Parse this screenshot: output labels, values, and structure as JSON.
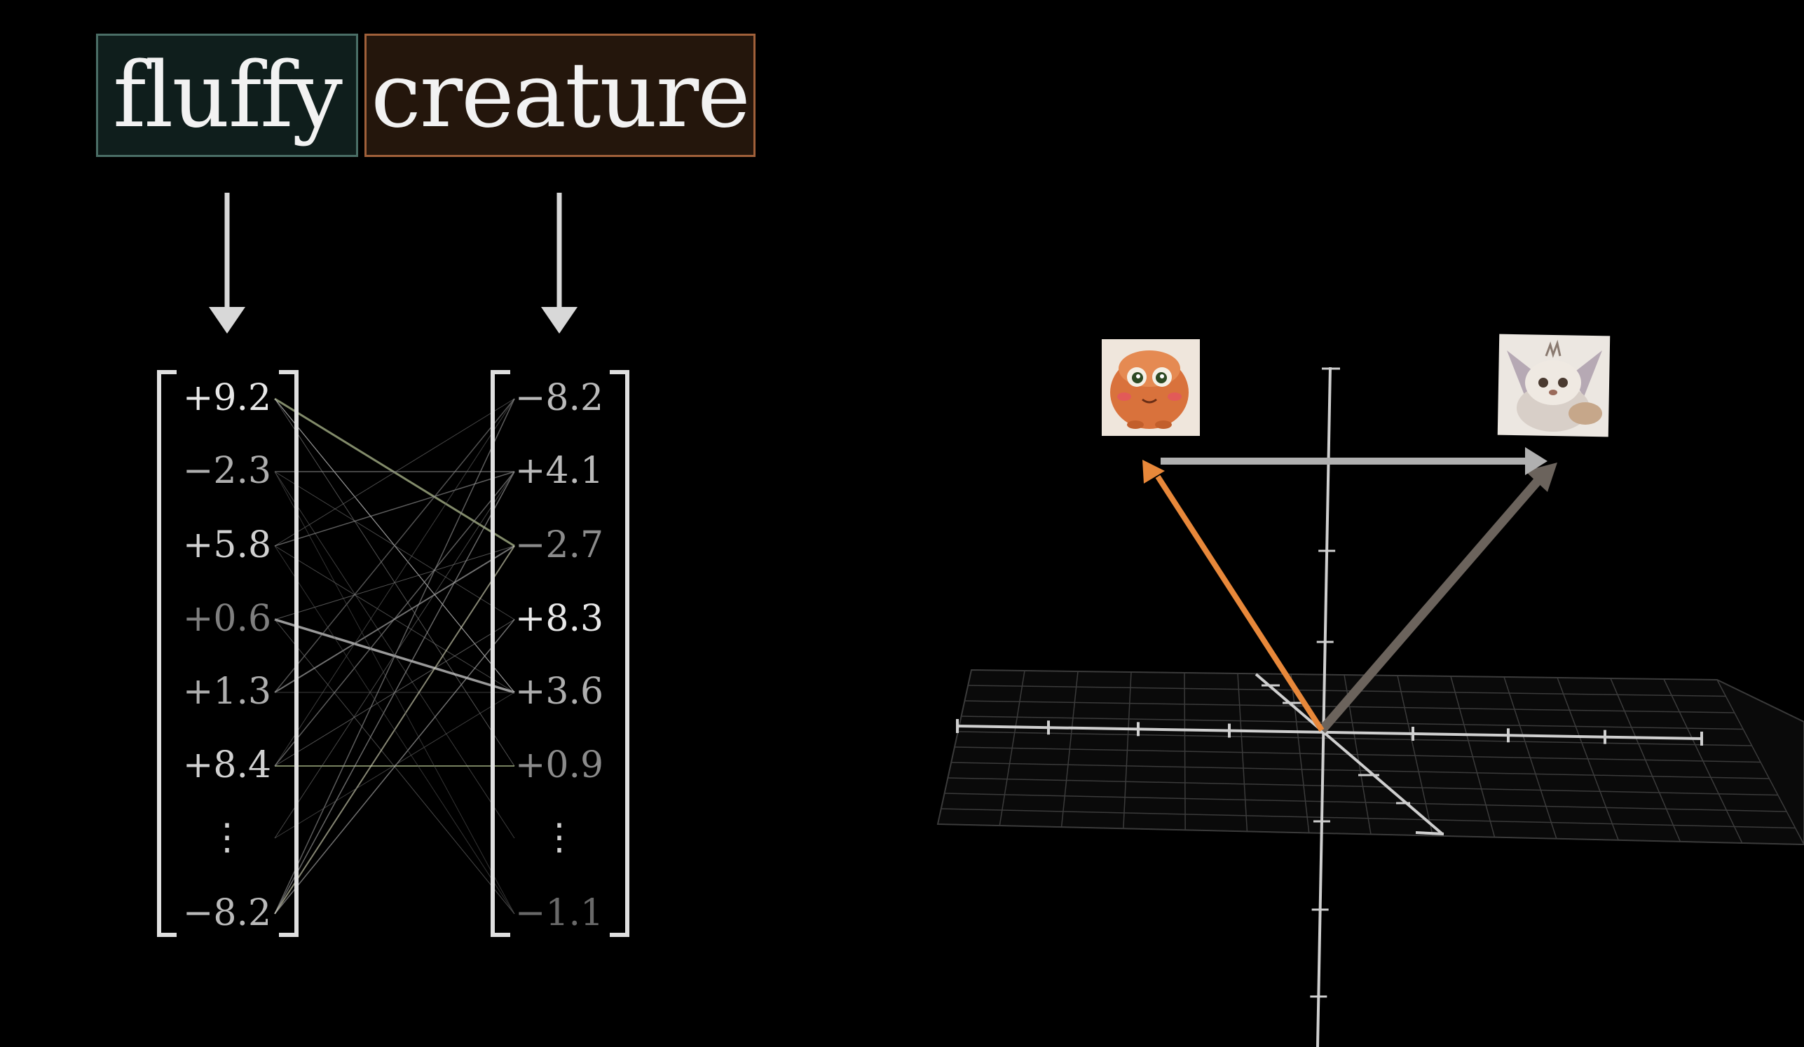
{
  "tokens": [
    {
      "word": "fluffy",
      "box_color": "#0f1e1c",
      "border_color": "#4a6e66"
    },
    {
      "word": "creature",
      "box_color": "#24160c",
      "border_color": "#a0603a"
    }
  ],
  "vectors": [
    {
      "token": "fluffy",
      "entries": [
        "+9.2",
        "−2.3",
        "+5.8",
        "+0.6",
        "+1.3",
        "+8.4",
        "⋮",
        "−8.2"
      ]
    },
    {
      "token": "creature",
      "entries": [
        "−8.2",
        "+4.1",
        "−2.7",
        "+8.3",
        "+3.6",
        "+0.9",
        "⋮",
        "−1.1"
      ]
    }
  ],
  "arrow_colors": {
    "fluffy_creature": "#e8883a",
    "creature": "#6b635c",
    "difference": "#b0b0b0"
  },
  "images": [
    {
      "label": "orange-round-creature-image"
    },
    {
      "label": "fluffy-white-creature-image"
    }
  ]
}
